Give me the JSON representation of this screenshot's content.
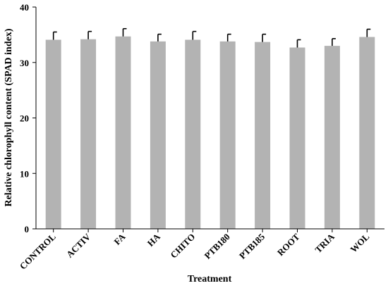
{
  "chart_data": {
    "type": "bar",
    "title": "",
    "xlabel": "Treatment",
    "ylabel": "Relative chlorophyll content (SPAD index)",
    "categories": [
      "CONTROL",
      "ACTIV",
      "FA",
      "HA",
      "CHITO",
      "PTB180",
      "PTB185",
      "ROOT",
      "TRIA",
      "WOL"
    ],
    "values": [
      34.1,
      34.2,
      34.7,
      33.8,
      34.1,
      33.8,
      33.7,
      32.7,
      33.0,
      34.6
    ],
    "errors": [
      1.4,
      1.4,
      1.4,
      1.3,
      1.5,
      1.3,
      1.4,
      1.4,
      1.3,
      1.4
    ],
    "ylim": [
      0,
      40
    ],
    "yticks": [
      0,
      10,
      20,
      30,
      40
    ],
    "grid": false,
    "legend": "none",
    "bar_color": "#b3b3b3",
    "axis_color": "#000000"
  }
}
